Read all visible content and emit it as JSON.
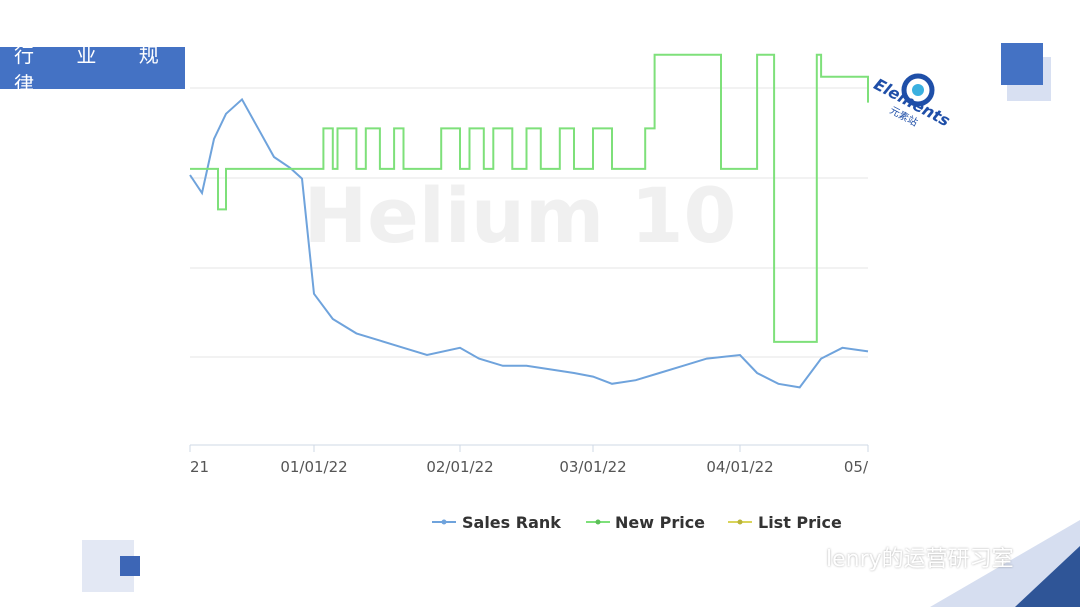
{
  "header": {
    "title": "行 业 规 律"
  },
  "logo": {
    "text": "Elements",
    "subtext": "元素站"
  },
  "watermark": {
    "text": "lenry的运营研习室"
  },
  "colors": {
    "accent": "#4472c4",
    "sales_rank": "#6fa3dc",
    "new_price": "#7ee07a",
    "list_price": "#d9d45a",
    "grid": "#e6e6e6"
  },
  "chart_data": {
    "type": "line",
    "title": "",
    "xlabel": "",
    "ylabel": "",
    "x_ticks": [
      "21",
      "01/01/22",
      "02/01/22",
      "03/01/22",
      "04/01/22",
      "05/"
    ],
    "grid": true,
    "legend_position": "bottom",
    "background_watermark": "Helium 10",
    "series": [
      {
        "name": "Sales Rank",
        "x": [
          "2021-12-01",
          "2021-12-04",
          "2021-12-07",
          "2021-12-10",
          "2021-12-14",
          "2021-12-18",
          "2021-12-22",
          "2021-12-26",
          "2021-12-29",
          "2022-01-01",
          "2022-01-05",
          "2022-01-10",
          "2022-01-15",
          "2022-01-20",
          "2022-01-25",
          "2022-02-01",
          "2022-02-05",
          "2022-02-10",
          "2022-02-15",
          "2022-02-20",
          "2022-02-25",
          "2022-03-01",
          "2022-03-05",
          "2022-03-10",
          "2022-03-15",
          "2022-03-20",
          "2022-03-25",
          "2022-04-01",
          "2022-04-05",
          "2022-04-10",
          "2022-04-15",
          "2022-04-20",
          "2022-04-25",
          "2022-05-01"
        ],
        "y": [
          75,
          70,
          85,
          92,
          96,
          88,
          80,
          77,
          74,
          42,
          35,
          31,
          29,
          27,
          25,
          27,
          24,
          22,
          22,
          21,
          20,
          19,
          17,
          18,
          20,
          22,
          24,
          25,
          20,
          17,
          16,
          24,
          27,
          26
        ]
      },
      {
        "name": "New Price",
        "x": [
          "2021-12-01",
          "2021-12-08",
          "2021-12-10",
          "2021-12-28",
          "2022-01-03",
          "2022-01-05",
          "2022-01-06",
          "2022-01-10",
          "2022-01-12",
          "2022-01-15",
          "2022-01-18",
          "2022-01-20",
          "2022-01-28",
          "2022-02-01",
          "2022-02-03",
          "2022-02-06",
          "2022-02-08",
          "2022-02-12",
          "2022-02-15",
          "2022-02-18",
          "2022-02-22",
          "2022-02-25",
          "2022-03-01",
          "2022-03-05",
          "2022-03-12",
          "2022-03-14",
          "2022-03-25",
          "2022-03-28",
          "2022-04-05",
          "2022-04-07",
          "2022-04-09",
          "2022-04-17",
          "2022-04-19",
          "2022-04-20",
          "2022-04-28",
          "2022-05-01"
        ],
        "y": [
          27.5,
          26.4,
          27.5,
          27.5,
          28.6,
          27.5,
          28.6,
          27.5,
          28.6,
          27.5,
          28.6,
          27.5,
          28.6,
          27.5,
          28.6,
          27.5,
          28.6,
          27.5,
          28.6,
          27.5,
          28.6,
          27.5,
          28.6,
          27.5,
          28.6,
          30.6,
          30.6,
          27.5,
          30.6,
          30.6,
          22.8,
          22.8,
          30.6,
          30.0,
          30.0,
          29.3
        ]
      },
      {
        "name": "List Price",
        "x": [],
        "y": []
      }
    ]
  }
}
